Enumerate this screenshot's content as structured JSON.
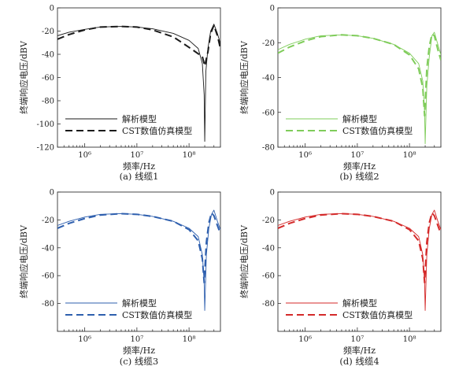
{
  "chart_data": [
    {
      "type": "line",
      "caption": "(a) 线缆1",
      "xlabel": "频率/Hz",
      "ylabel": "终端响应电压/dBV",
      "x_scale": "log",
      "xlim": [
        300000,
        400000000
      ],
      "ylim": [
        -120,
        0
      ],
      "yticks": [
        0,
        -20,
        -40,
        -60,
        -80,
        -100,
        -120
      ],
      "xtick_labels": [
        "10⁶",
        "10⁷",
        "10⁸"
      ],
      "xticks": [
        1000000,
        10000000,
        100000000
      ],
      "color": "#1a1a1a",
      "legend_position": "lower-left",
      "series": [
        {
          "name": "解析模型",
          "style": "solid",
          "x": [
            300000,
            500000,
            1000000,
            2000000,
            5000000,
            10000000,
            20000000,
            50000000,
            100000000,
            150000000,
            180000000,
            195000000,
            200000000,
            210000000,
            230000000,
            260000000,
            300000000,
            350000000,
            400000000
          ],
          "y": [
            -24,
            -21,
            -18.5,
            -16.5,
            -16,
            -16.5,
            -18,
            -22,
            -28,
            -35,
            -48,
            -75,
            -115,
            -55,
            -35,
            -20,
            -14,
            -22,
            -31
          ]
        },
        {
          "name": "CST数值仿真模型",
          "style": "dashed",
          "x": [
            300000,
            500000,
            1000000,
            2000000,
            5000000,
            10000000,
            20000000,
            50000000,
            100000000,
            180000000,
            200000000,
            230000000,
            260000000,
            300000000,
            350000000,
            400000000
          ],
          "y": [
            -27,
            -23,
            -19,
            -16.5,
            -16,
            -16.5,
            -19,
            -25,
            -34,
            -42,
            -50,
            -38,
            -22,
            -15,
            -24,
            -35
          ]
        }
      ]
    },
    {
      "type": "line",
      "caption": "(b) 线缆2",
      "xlabel": "频率/Hz",
      "ylabel": "终端响应电压/dBV",
      "x_scale": "log",
      "xlim": [
        300000,
        400000000
      ],
      "ylim": [
        -80,
        0
      ],
      "yticks": [
        0,
        -20,
        -40,
        -60,
        -80
      ],
      "xtick_labels": [
        "10⁶",
        "10⁷",
        "10⁸"
      ],
      "xticks": [
        1000000,
        10000000,
        100000000
      ],
      "color": "#7fcc5a",
      "legend_position": "lower-left",
      "series": [
        {
          "name": "解析模型",
          "style": "solid",
          "x": [
            300000,
            500000,
            1000000,
            2000000,
            5000000,
            10000000,
            20000000,
            50000000,
            100000000,
            150000000,
            180000000,
            195000000,
            200000000,
            215000000,
            240000000,
            270000000,
            300000000,
            350000000,
            400000000
          ],
          "y": [
            -24,
            -21,
            -18,
            -16,
            -15.5,
            -16,
            -17.5,
            -21,
            -26,
            -32,
            -42,
            -60,
            -78,
            -45,
            -28,
            -16,
            -14,
            -21,
            -27
          ]
        },
        {
          "name": "CST数值仿真模型",
          "style": "dashed",
          "x": [
            300000,
            500000,
            1000000,
            2000000,
            5000000,
            10000000,
            20000000,
            50000000,
            100000000,
            150000000,
            180000000,
            195000000,
            215000000,
            240000000,
            270000000,
            300000000,
            350000000,
            400000000
          ],
          "y": [
            -26,
            -22.5,
            -19,
            -16.5,
            -15.5,
            -16,
            -17.5,
            -21,
            -27,
            -35,
            -46,
            -62,
            -35,
            -22,
            -15,
            -16,
            -24,
            -30
          ]
        }
      ]
    },
    {
      "type": "line",
      "caption": "(c) 线缆3",
      "xlabel": "频率/Hz",
      "ylabel": "终端响应电压/dBV",
      "x_scale": "log",
      "xlim": [
        300000,
        400000000
      ],
      "ylim": [
        -100,
        0
      ],
      "yticks": [
        0,
        -20,
        -40,
        -60,
        -80
      ],
      "xtick_labels": [
        "10⁶",
        "10⁷",
        "10⁸"
      ],
      "xticks": [
        1000000,
        10000000,
        100000000
      ],
      "color": "#2e5fae",
      "legend_position": "lower-left",
      "series": [
        {
          "name": "解析模型",
          "style": "solid",
          "x": [
            300000,
            500000,
            1000000,
            2000000,
            5000000,
            10000000,
            20000000,
            50000000,
            100000000,
            150000000,
            180000000,
            195000000,
            200000000,
            215000000,
            240000000,
            270000000,
            300000000,
            350000000,
            400000000
          ],
          "y": [
            -24,
            -21,
            -18,
            -16,
            -15.5,
            -16,
            -17.5,
            -21,
            -26,
            -32,
            -45,
            -65,
            -85,
            -45,
            -26,
            -16,
            -13,
            -21,
            -27
          ]
        },
        {
          "name": "CST数值仿真模型",
          "style": "dashed",
          "x": [
            300000,
            500000,
            1000000,
            2000000,
            5000000,
            10000000,
            20000000,
            50000000,
            100000000,
            150000000,
            180000000,
            195000000,
            215000000,
            240000000,
            270000000,
            300000000,
            350000000,
            400000000
          ],
          "y": [
            -26,
            -22.5,
            -19,
            -16.5,
            -15.5,
            -16,
            -17.5,
            -21,
            -27,
            -35,
            -48,
            -65,
            -36,
            -22,
            -15,
            -17,
            -24,
            -30
          ]
        }
      ]
    },
    {
      "type": "line",
      "caption": "(d) 线缆4",
      "xlabel": "频率/Hz",
      "ylabel": "终端响应电压/dBV",
      "x_scale": "log",
      "xlim": [
        300000,
        400000000
      ],
      "ylim": [
        -100,
        0
      ],
      "yticks": [
        0,
        -20,
        -40,
        -60,
        -80
      ],
      "xtick_labels": [
        "10⁶",
        "10⁷",
        "10⁸"
      ],
      "xticks": [
        1000000,
        10000000,
        100000000
      ],
      "color": "#d42a2a",
      "legend_position": "lower-left",
      "series": [
        {
          "name": "解析模型",
          "style": "solid",
          "x": [
            300000,
            500000,
            1000000,
            2000000,
            5000000,
            10000000,
            20000000,
            50000000,
            100000000,
            150000000,
            180000000,
            195000000,
            200000000,
            215000000,
            240000000,
            270000000,
            300000000,
            350000000,
            400000000
          ],
          "y": [
            -24,
            -21,
            -18,
            -16,
            -15.5,
            -16,
            -17.5,
            -21,
            -26,
            -32,
            -45,
            -65,
            -85,
            -45,
            -26,
            -16,
            -13,
            -21,
            -27
          ]
        },
        {
          "name": "CST数值仿真模型",
          "style": "dashed",
          "x": [
            300000,
            500000,
            1000000,
            2000000,
            5000000,
            10000000,
            20000000,
            50000000,
            100000000,
            150000000,
            180000000,
            195000000,
            215000000,
            240000000,
            270000000,
            300000000,
            350000000,
            400000000
          ],
          "y": [
            -26,
            -22.5,
            -19,
            -16.5,
            -15.5,
            -16,
            -17.5,
            -21,
            -27,
            -35,
            -48,
            -65,
            -36,
            -22,
            -15,
            -17,
            -24,
            -30
          ]
        }
      ]
    }
  ]
}
